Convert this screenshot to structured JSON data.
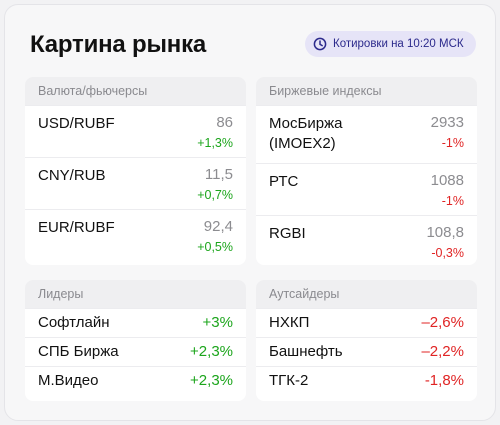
{
  "title": "Картина рынка",
  "quotes_badge": {
    "text": "Котировки на 10:20 МСК",
    "icon": "clock-icon",
    "color": "#2c2a8c"
  },
  "colors": {
    "up": "#1ca51c",
    "down": "#e02424",
    "badge_bg": "#e6e4f7"
  },
  "currency": {
    "header": "Валюта/фьючерсы",
    "items": [
      {
        "name": "USD/RUBF",
        "value": "86",
        "change": "+1,3%",
        "dir": "up"
      },
      {
        "name": "CNY/RUB",
        "value": "11,5",
        "change": "+0,7%",
        "dir": "up"
      },
      {
        "name": "EUR/RUBF",
        "value": "92,4",
        "change": "+0,5%",
        "dir": "up"
      }
    ]
  },
  "indices": {
    "header": "Биржевые индексы",
    "items": [
      {
        "name_line1": "МосБиржа",
        "name_line2": "(IMOEX2)",
        "value": "2933",
        "change": "-1%",
        "dir": "down"
      },
      {
        "name_line1": "РТС",
        "name_line2": "",
        "value": "1088",
        "change": "-1%",
        "dir": "down"
      },
      {
        "name_line1": "RGBI",
        "name_line2": "",
        "value": "108,8",
        "change": "-0,3%",
        "dir": "down"
      }
    ]
  },
  "leaders": {
    "header": "Лидеры",
    "items": [
      {
        "name": "Софтлайн",
        "change": "+3%",
        "dir": "up"
      },
      {
        "name": "СПБ Биржа",
        "change": "+2,3%",
        "dir": "up"
      },
      {
        "name": "М.Видео",
        "change": "+2,3%",
        "dir": "up"
      }
    ]
  },
  "outsiders": {
    "header": "Аутсайдеры",
    "items": [
      {
        "name": "НХКП",
        "change": "–2,6%",
        "dir": "down"
      },
      {
        "name": "Башнефть",
        "change": "–2,2%",
        "dir": "down"
      },
      {
        "name": "ТГК-2",
        "change": "-1,8%",
        "dir": "down"
      }
    ]
  }
}
